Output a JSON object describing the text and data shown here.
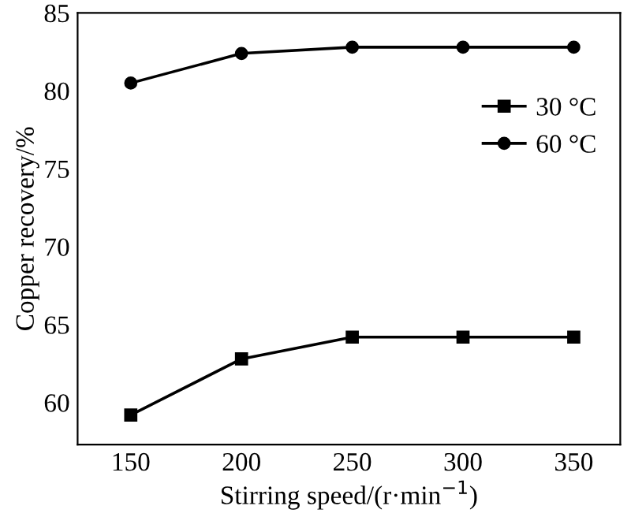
{
  "chart_data": {
    "type": "line",
    "xlabel": "Stirring speed/(r·min$^{−1}$)",
    "ylabel": "Copper recovery/%",
    "x": [
      150,
      200,
      250,
      300,
      350
    ],
    "series": [
      {
        "name": "30 °C",
        "color": "#000000",
        "marker": "square",
        "values": [
          59.2,
          62.8,
          64.2,
          64.2,
          64.2
        ]
      },
      {
        "name": "60 °C",
        "color": "#000000",
        "marker": "circle",
        "values": [
          80.5,
          82.4,
          82.8,
          82.8,
          82.8
        ]
      }
    ],
    "xlim": [
      126,
      371
    ],
    "ylim": [
      57.3,
      85
    ],
    "xticks": [
      150,
      200,
      250,
      300,
      350
    ],
    "yticks": [
      60,
      65,
      70,
      75,
      80,
      85
    ],
    "grid": false,
    "legend": "upper right",
    "line_style": "solid"
  }
}
